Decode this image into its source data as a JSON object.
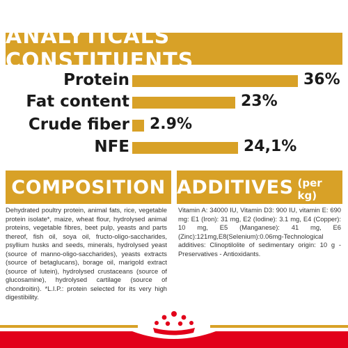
{
  "analytics": {
    "title": "ANALYTICALS CONSTITUENTS",
    "rows": [
      {
        "label": "Protein",
        "value": "36%",
        "fraction": 1.0
      },
      {
        "label": "Fat content",
        "value": "23%",
        "fraction": 0.62
      },
      {
        "label": "Crude fiber",
        "value": "2.9%",
        "fraction": 0.07
      },
      {
        "label": "NFE",
        "value": "24,1%",
        "fraction": 0.64
      }
    ]
  },
  "composition": {
    "title": "COMPOSITION",
    "text": "Dehydrated poultry protein, animal fats, rice, vegetable protein isolate*, maize, wheat flour, hydrolysed animal proteins, vegetable fibres, beet pulp, yeasts and parts thereof, fish oil, soya oil, fructo-oligo-saccharides, psyllium husks and seeds, minerals, hydrolysed yeast (source of manno-oligo-saccharides), yeasts extracts (source of betaglucans), borage oil, marigold extract (source of lutein), hydrolysed crustaceans (source of glucosamine), hydrolysed cartilage (source of chondroitin). *L.I.P.: protein selected for its very high digestibility."
  },
  "additives": {
    "title": "ADDITIVES",
    "subtitle": "(per kg)",
    "text": "Vitamin A: 34000 IU, Vitamin D3: 900 IU, vitamin E: 690 mg: E1 (Iron): 31 mg, E2 (Iodine): 3.1 mg, E4 (Copper): 10 mg, E5 (Manganese): 41 mg, E6 (Zinc):121mg,E8(Selenium):0.06mg-Technological additives: Clinoptilolite of sedimentary origin: 10 g - Preservatives - Antioxidants."
  },
  "colors": {
    "accent": "#d8a127",
    "brand_red": "#e2001a"
  },
  "icons": {
    "brand_logo": "crown-icon"
  }
}
